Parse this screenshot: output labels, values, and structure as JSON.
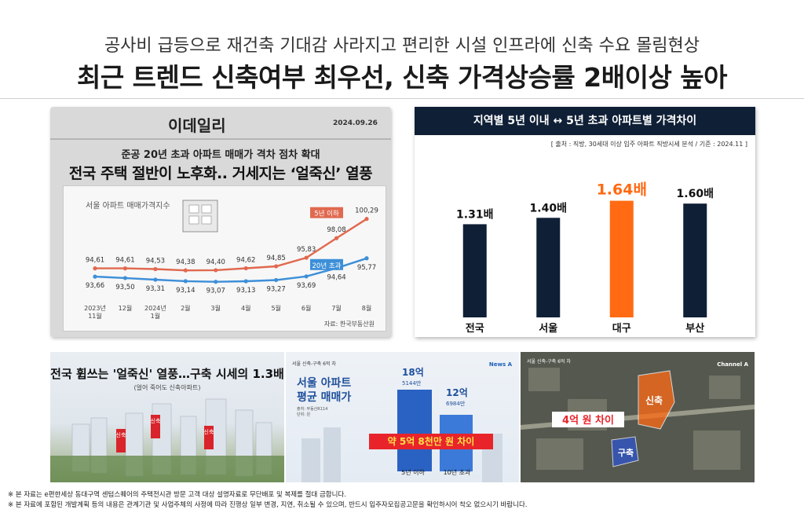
{
  "header": {
    "subtitle": "공사비 급등으로 재건축 기대감 사라지고 편리한 시설 인프라에 신축 수요 몰림현상",
    "title": "최근 트렌드 신축여부 최우선, 신축 가격상승률 2배이상 높아"
  },
  "news": {
    "brand": "이데일리",
    "date": "2024.09.26",
    "subheadline": "준공 20년 초과 아파트 매매가 격차 점차 확대",
    "headline": "전국 주택 절반이 노후화.. 거세지는 ‘얼죽신’ 열풍",
    "chart_label": "서울 아파트 매매가격지수",
    "source": "자료: 한국부동산원"
  },
  "bar_card": {
    "header": "지역별 5년 이내 ↔ 5년 초과 아파트별 가격차이",
    "source": "[ 출처 : 직방, 30세대 이상 입주 아파트 직방시세 분석  / 기준 : 2024.11 ]"
  },
  "photos": {
    "p1_title": "전국 휩쓰는 '얼죽신' 열풍…구축 시세의 1.3배",
    "p1_sub": "(얼어 죽어도 신축아파트)",
    "p1_signs": [
      "신축",
      "신축",
      "신축"
    ],
    "p2_tag": "서울 신축-구축 6억 차",
    "p2_channel": "News A",
    "p2_title1": "서울 아파트",
    "p2_title2": "평균 매매가",
    "p2_meta1": "출처: 부동산R114",
    "p2_meta2": "단위: 원",
    "p2_v1_big": "18억",
    "p2_v1_small": "5144만",
    "p2_v2_big": "12억",
    "p2_v2_small": "6984만",
    "p2_diff": "약 5억 8천만 원 차이",
    "p2_label1": "5년 이하",
    "p2_label2": "10년 초과",
    "p3_tag": "서울 신축-구축 6억 차",
    "p3_channel": "Channel A",
    "p3_diff": "4억 원 차이",
    "p3_new": "신축",
    "p3_old": "구축"
  },
  "footer": {
    "line1": "※ 본 자료는 e편한세상 동대구역 센텀스퀘어의 주택전시관 방문 고객 대상 설명자료로 무단배포 및 복제를 절대 금합니다.",
    "line2": "※ 본 자료에 포함된 개발계획 등의 내용은 관계기관 및 사업주체의 사정에 따라 진행상 일부 변경, 지연, 취소될 수 있으며, 반드시 입주자모집공고문을 확인하시어 착오 없으시기 바랍니다."
  },
  "colors": {
    "navy": "#0f1f36",
    "orange": "#ff6a13",
    "red_line": "#e0694f",
    "blue_line": "#3d8fd8"
  },
  "chart_data": [
    {
      "type": "line",
      "title": "서울 아파트 매매가격지수",
      "categories": [
        "2023년 11월",
        "12월",
        "2024년 1월",
        "2월",
        "3월",
        "4월",
        "5월",
        "6월",
        "7월",
        "8월"
      ],
      "series": [
        {
          "name": "5년 이하",
          "values": [
            94.61,
            94.61,
            94.53,
            94.38,
            94.4,
            94.62,
            94.85,
            95.83,
            98.08,
            100.29
          ]
        },
        {
          "name": "20년 초과",
          "values": [
            93.66,
            93.5,
            93.31,
            93.14,
            93.07,
            93.13,
            93.27,
            93.69,
            94.64,
            95.77
          ]
        }
      ],
      "labels": [
        "94,61",
        "94,61",
        "94,53",
        "94,38",
        "94,40",
        "94,62",
        "94,85",
        "95,83",
        "98,08",
        "100,29"
      ],
      "labels2": [
        "93,66",
        "93,50",
        "93,31",
        "93,14",
        "93,07",
        "93,13",
        "93,27",
        "93,69",
        "94,64",
        "95,77"
      ],
      "ylim": [
        92.5,
        100.8
      ]
    },
    {
      "type": "bar",
      "title": "지역별 5년 이내 ↔ 5년 초과 아파트별 가격차이",
      "categories": [
        "전국",
        "서울",
        "대구",
        "부산"
      ],
      "values": [
        1.31,
        1.4,
        1.64,
        1.6
      ],
      "labels": [
        "1.31배",
        "1.40배",
        "1.64배",
        "1.60배"
      ],
      "highlight": "대구",
      "ylim": [
        0,
        1.9
      ]
    }
  ]
}
